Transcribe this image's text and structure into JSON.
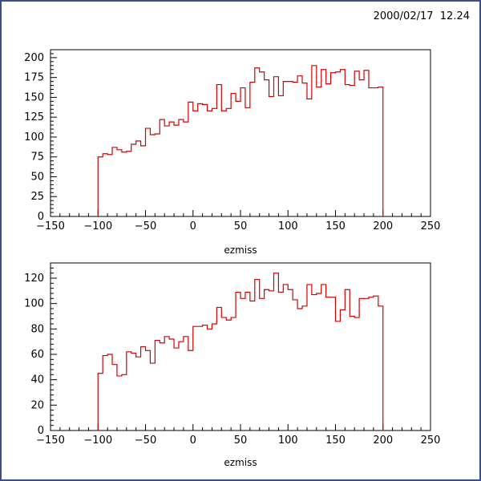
{
  "header": {
    "timestamp": "2000/02/17  12.24"
  },
  "colors": {
    "histogram": "#d40000",
    "axes": "#000000",
    "frame": "#3a4e8c"
  },
  "chart_data": [
    {
      "type": "histogram",
      "xlabel": "ezmiss",
      "xlim": [
        -150,
        250
      ],
      "ylim": [
        0,
        210
      ],
      "xticks": [
        -150,
        -100,
        -50,
        0,
        50,
        100,
        150,
        200,
        250
      ],
      "yticks": [
        0,
        25,
        50,
        75,
        100,
        125,
        150,
        175,
        200
      ],
      "bin_start": -100,
      "bin_width": 5,
      "values": [
        75,
        79,
        78,
        87,
        84,
        81,
        82,
        91,
        95,
        89,
        111,
        103,
        104,
        122,
        114,
        119,
        115,
        122,
        119,
        144,
        133,
        142,
        141,
        133,
        136,
        166,
        133,
        136,
        155,
        145,
        162,
        137,
        169,
        187,
        182,
        172,
        151,
        176,
        152,
        170,
        170,
        169,
        177,
        168,
        148,
        190,
        163,
        185,
        167,
        181,
        182,
        185,
        166,
        165,
        183,
        172,
        184,
        162,
        162,
        163
      ]
    },
    {
      "type": "histogram",
      "xlabel": "ezmiss",
      "xlim": [
        -150,
        250
      ],
      "ylim": [
        0,
        132
      ],
      "xticks": [
        -150,
        -100,
        -50,
        0,
        50,
        100,
        150,
        200,
        250
      ],
      "yticks": [
        0,
        20,
        40,
        60,
        80,
        100,
        120
      ],
      "bin_start": -100,
      "bin_width": 5,
      "values": [
        45,
        59,
        60,
        52,
        43,
        44,
        62,
        61,
        58,
        66,
        63,
        53,
        71,
        69,
        74,
        72,
        65,
        70,
        74,
        63,
        82,
        82,
        83,
        80,
        84,
        97,
        89,
        87,
        89,
        109,
        104,
        109,
        102,
        119,
        104,
        111,
        110,
        124,
        109,
        115,
        111,
        103,
        96,
        98,
        115,
        107,
        108,
        115,
        105,
        105,
        86,
        95,
        111,
        90,
        89,
        104,
        104,
        105,
        106,
        98
      ]
    }
  ]
}
